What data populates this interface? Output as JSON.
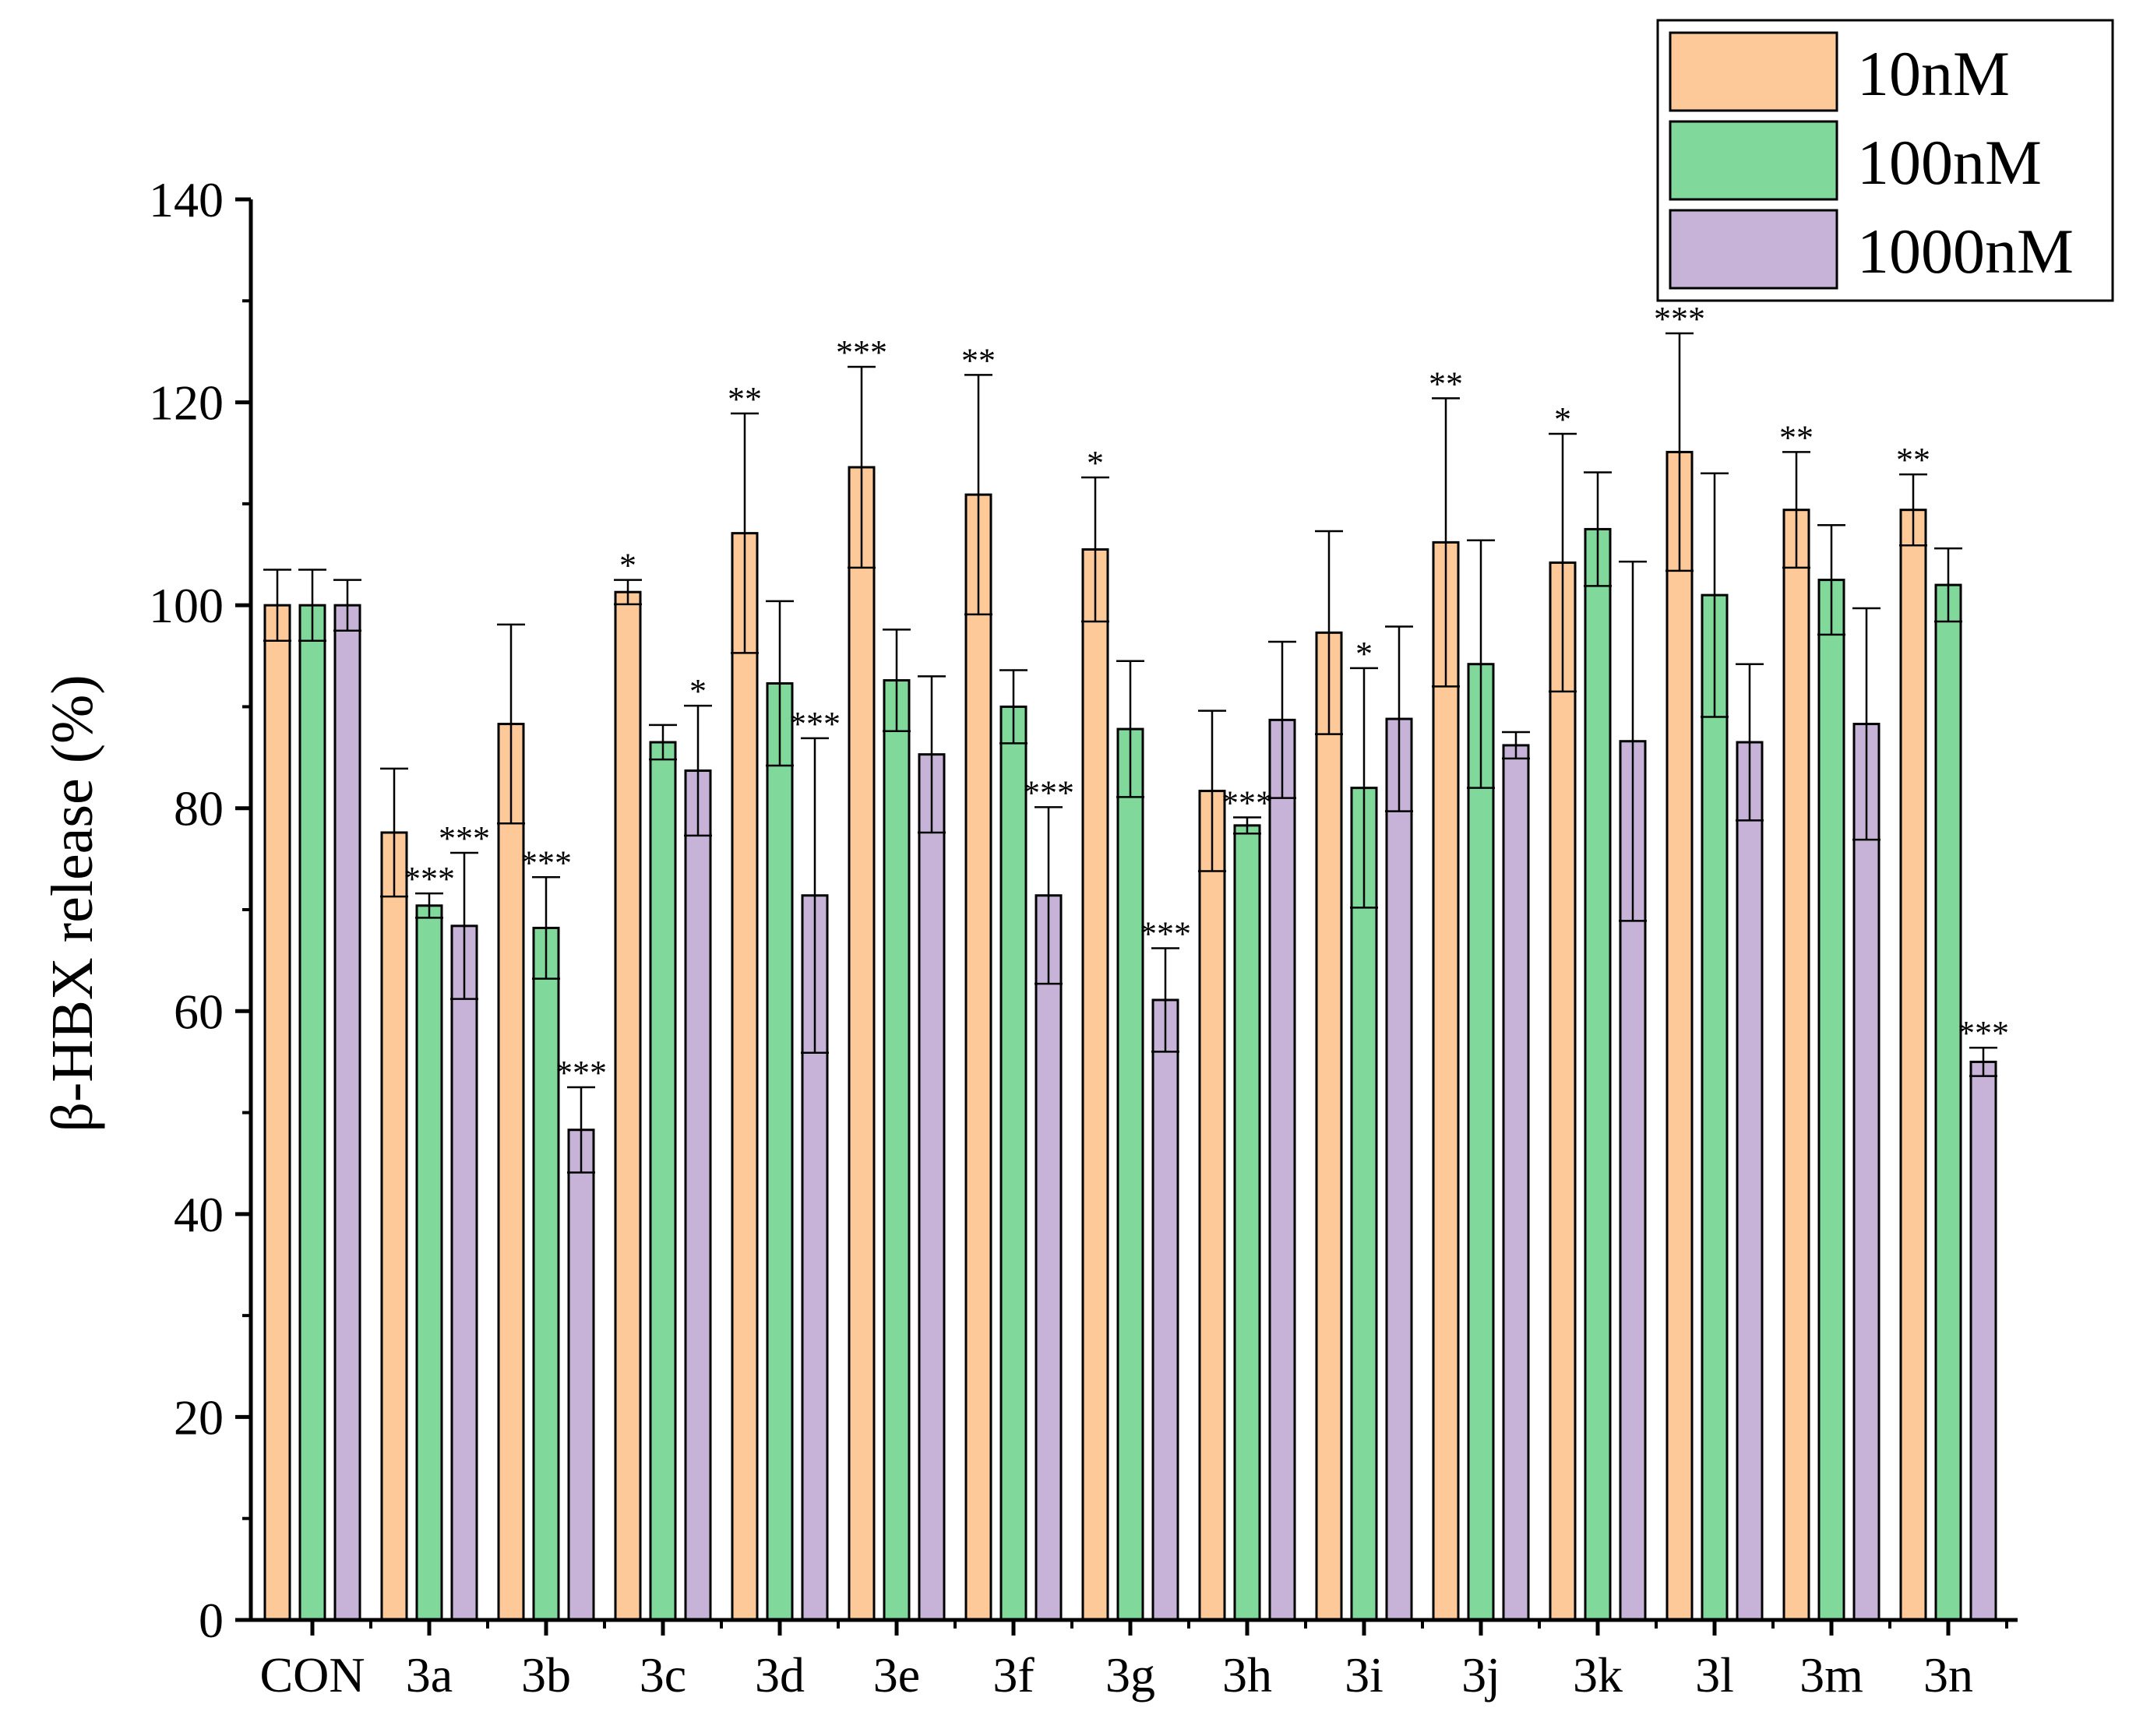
{
  "chart_data": {
    "type": "bar",
    "title": "",
    "xlabel": "",
    "ylabel": "β-HBX release (%)",
    "ylim": [
      0,
      140
    ],
    "yticks": [
      0,
      20,
      40,
      60,
      80,
      100,
      120,
      140
    ],
    "grid": false,
    "legend_position": "top-right",
    "categories": [
      "CON",
      "3a",
      "3b",
      "3c",
      "3d",
      "3e",
      "3f",
      "3g",
      "3h",
      "3i",
      "3j",
      "3k",
      "3l",
      "3m",
      "3n"
    ],
    "series": [
      {
        "name": "10nM",
        "color": "#FDC998",
        "values": [
          100,
          77.6,
          88.3,
          101.3,
          107.1,
          113.6,
          110.9,
          105.5,
          81.7,
          97.3,
          106.2,
          104.2,
          115.1,
          109.4,
          109.4
        ],
        "errors": [
          3.5,
          6.3,
          9.8,
          1.2,
          11.8,
          9.9,
          11.8,
          7.1,
          7.9,
          10.0,
          14.2,
          12.7,
          11.7,
          5.7,
          3.5
        ],
        "sig": [
          "",
          "",
          "",
          "*",
          "**",
          "***",
          "**",
          "*",
          "",
          "",
          "**",
          "*",
          "***",
          "**",
          "**"
        ]
      },
      {
        "name": "100nM",
        "color": "#80D99B",
        "values": [
          100,
          70.4,
          68.2,
          86.5,
          92.3,
          92.6,
          90.0,
          87.8,
          78.3,
          82.0,
          94.2,
          107.5,
          101.0,
          102.5,
          102.0
        ],
        "errors": [
          3.5,
          1.2,
          5.0,
          1.7,
          8.1,
          5.0,
          3.6,
          6.7,
          0.8,
          11.8,
          12.2,
          5.6,
          12.0,
          5.4,
          3.6
        ],
        "sig": [
          "",
          "***",
          "***",
          "",
          "",
          "",
          "",
          "",
          "***",
          "*",
          "",
          "",
          "",
          "",
          ""
        ]
      },
      {
        "name": "1000nM",
        "color": "#C8B3D8",
        "values": [
          100,
          68.4,
          48.3,
          83.7,
          71.4,
          85.3,
          71.4,
          61.1,
          88.7,
          88.8,
          86.2,
          86.6,
          86.5,
          88.3,
          55.0
        ],
        "errors": [
          2.5,
          7.2,
          4.2,
          6.4,
          15.5,
          7.7,
          8.7,
          5.1,
          7.7,
          9.1,
          1.3,
          17.7,
          7.7,
          11.4,
          1.4
        ],
        "sig": [
          "",
          "***",
          "***",
          "*",
          "***",
          "",
          "***",
          "***",
          "",
          "",
          "",
          "",
          "",
          "",
          "***"
        ]
      }
    ]
  }
}
